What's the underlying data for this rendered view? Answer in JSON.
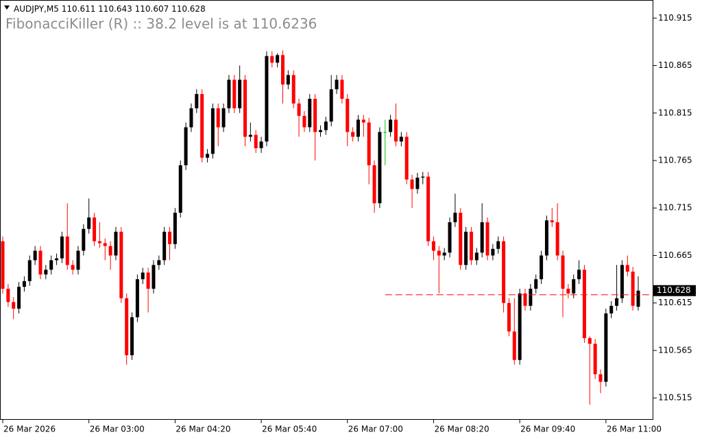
{
  "chart_data": {
    "type": "candlestick",
    "symbol": "AUDJPY,M5",
    "title": "FibonacciKiller (R) :: 38.2 level is at 110.6236",
    "level": 110.6236,
    "level_start": 71,
    "level_color": "#ff0000",
    "colors": {
      "up": "#000000",
      "down": "#ff0000",
      "doji": "#00c000"
    },
    "ylim": [
      110.492,
      110.934
    ],
    "yticks": [
      110.515,
      110.565,
      110.615,
      110.665,
      110.715,
      110.765,
      110.815,
      110.865,
      110.915
    ],
    "xticks": [
      {
        "value": 0,
        "label": "26 Mar 2026"
      },
      {
        "value": 16,
        "label": "26 Mar 03:00"
      },
      {
        "value": 32,
        "label": "26 Mar 04:20"
      },
      {
        "value": 48,
        "label": "26 Mar 05:40"
      },
      {
        "value": 64,
        "label": "26 Mar 07:00"
      },
      {
        "value": 80,
        "label": "26 Mar 08:20"
      },
      {
        "value": 96,
        "label": "26 Mar 09:40"
      },
      {
        "value": 112,
        "label": "26 Mar 11:00"
      }
    ],
    "open": [
      110.68,
      110.63,
      110.616,
      110.609,
      110.632,
      110.638,
      110.66,
      110.67,
      110.645,
      110.65,
      110.66,
      110.662,
      110.685,
      110.655,
      110.65,
      110.67,
      110.693,
      110.705,
      110.68,
      110.678,
      110.675,
      110.665,
      110.69,
      110.62,
      110.56,
      110.6,
      110.64,
      110.647,
      110.63,
      110.655,
      110.66,
      110.69,
      110.677,
      110.71,
      110.76,
      110.8,
      110.82,
      110.835,
      110.768,
      110.772,
      110.82,
      110.8,
      110.82,
      110.85,
      110.82,
      110.85,
      110.79,
      110.792,
      110.778,
      110.785,
      110.875,
      110.868,
      110.876,
      110.845,
      110.855,
      110.825,
      110.812,
      110.8,
      110.83,
      110.795,
      110.797,
      110.806,
      110.84,
      110.85,
      110.83,
      110.795,
      110.79,
      110.808,
      110.805,
      110.76,
      110.72,
      110.795,
      110.795,
      110.808,
      110.785,
      110.79,
      110.745,
      110.735,
      110.747,
      110.748,
      110.68,
      110.67,
      110.665,
      110.668,
      110.7,
      110.71,
      110.655,
      110.69,
      110.66,
      110.668,
      110.7,
      110.665,
      110.672,
      110.68,
      110.615,
      110.585,
      110.555,
      110.625,
      110.612,
      110.63,
      110.64,
      110.665,
      110.702,
      110.7,
      110.665,
      110.63,
      110.625,
      110.64,
      110.65,
      110.578,
      110.572,
      110.54,
      110.532,
      110.604,
      110.612,
      110.62,
      110.655,
      110.648,
      110.611
    ],
    "high": [
      110.685,
      110.635,
      110.621,
      110.637,
      110.643,
      110.665,
      110.675,
      110.675,
      110.655,
      110.665,
      110.667,
      110.69,
      110.72,
      110.66,
      110.675,
      110.698,
      110.725,
      110.71,
      110.7,
      110.683,
      110.68,
      110.695,
      110.695,
      110.625,
      110.605,
      110.645,
      110.652,
      110.652,
      110.66,
      110.665,
      110.695,
      110.695,
      110.715,
      110.765,
      110.805,
      110.825,
      110.84,
      110.84,
      110.777,
      110.825,
      110.825,
      110.825,
      110.855,
      110.855,
      110.865,
      110.855,
      110.805,
      110.797,
      110.79,
      110.88,
      110.88,
      110.878,
      110.881,
      110.86,
      110.86,
      110.83,
      110.817,
      110.835,
      110.835,
      110.802,
      110.811,
      110.855,
      110.855,
      110.855,
      110.835,
      110.8,
      110.813,
      110.813,
      110.81,
      110.765,
      110.8,
      110.808,
      110.813,
      110.825,
      110.795,
      110.795,
      110.75,
      110.752,
      110.753,
      110.753,
      110.685,
      110.675,
      110.673,
      110.705,
      110.73,
      110.715,
      110.695,
      110.695,
      110.673,
      110.72,
      110.705,
      110.677,
      110.685,
      110.685,
      110.62,
      110.62,
      110.63,
      110.63,
      110.635,
      110.645,
      110.67,
      110.707,
      110.715,
      110.72,
      110.67,
      110.635,
      110.645,
      110.66,
      110.655,
      110.58,
      110.577,
      110.545,
      110.609,
      110.617,
      110.655,
      110.66,
      110.665,
      110.653,
      110.643
    ],
    "low": [
      110.625,
      110.611,
      110.598,
      110.604,
      110.627,
      110.633,
      110.655,
      110.64,
      110.64,
      110.645,
      110.655,
      110.657,
      110.65,
      110.645,
      110.645,
      110.665,
      110.688,
      110.675,
      110.673,
      110.66,
      110.65,
      110.66,
      110.615,
      110.55,
      110.555,
      110.595,
      110.635,
      110.605,
      110.625,
      110.65,
      110.655,
      110.66,
      110.672,
      110.705,
      110.755,
      110.795,
      110.815,
      110.763,
      110.763,
      110.767,
      110.78,
      110.795,
      110.815,
      110.815,
      110.815,
      110.78,
      110.785,
      110.773,
      110.773,
      110.78,
      110.863,
      110.863,
      110.825,
      110.84,
      110.82,
      110.79,
      110.795,
      110.795,
      110.765,
      110.79,
      110.792,
      110.801,
      110.835,
      110.825,
      110.78,
      110.785,
      110.785,
      110.79,
      110.74,
      110.71,
      110.715,
      110.76,
      110.79,
      110.78,
      110.78,
      110.74,
      110.715,
      110.73,
      110.74,
      110.675,
      110.66,
      110.625,
      110.66,
      110.663,
      110.695,
      110.65,
      110.65,
      110.655,
      110.655,
      110.663,
      110.66,
      110.66,
      110.667,
      110.605,
      110.58,
      110.55,
      110.55,
      110.607,
      110.607,
      110.625,
      110.635,
      110.66,
      110.695,
      110.66,
      110.6,
      110.62,
      110.62,
      110.635,
      110.573,
      110.508,
      110.535,
      110.52,
      110.527,
      110.599,
      110.607,
      110.615,
      110.643,
      110.607,
      110.607
    ],
    "close": [
      110.63,
      110.616,
      110.609,
      110.632,
      110.638,
      110.66,
      110.67,
      110.645,
      110.65,
      110.66,
      110.662,
      110.685,
      110.655,
      110.65,
      110.67,
      110.693,
      110.705,
      110.68,
      110.678,
      110.675,
      110.665,
      110.69,
      110.62,
      110.56,
      110.6,
      110.64,
      110.647,
      110.63,
      110.655,
      110.66,
      110.69,
      110.677,
      110.71,
      110.76,
      110.8,
      110.82,
      110.835,
      110.768,
      110.772,
      110.82,
      110.8,
      110.82,
      110.85,
      110.82,
      110.85,
      110.79,
      110.792,
      110.778,
      110.785,
      110.875,
      110.868,
      110.876,
      110.845,
      110.855,
      110.825,
      110.812,
      110.8,
      110.83,
      110.795,
      110.797,
      110.806,
      110.84,
      110.85,
      110.83,
      110.795,
      110.79,
      110.808,
      110.805,
      110.76,
      110.72,
      110.795,
      110.795,
      110.808,
      110.785,
      110.79,
      110.745,
      110.735,
      110.747,
      110.748,
      110.68,
      110.67,
      110.665,
      110.668,
      110.7,
      110.71,
      110.655,
      110.69,
      110.66,
      110.668,
      110.7,
      110.665,
      110.672,
      110.68,
      110.615,
      110.585,
      110.555,
      110.625,
      110.612,
      110.63,
      110.64,
      110.665,
      110.702,
      110.7,
      110.665,
      110.63,
      110.625,
      110.64,
      110.65,
      110.578,
      110.572,
      110.54,
      110.532,
      110.604,
      110.612,
      110.62,
      110.655,
      110.648,
      110.612,
      110.628
    ]
  }
}
